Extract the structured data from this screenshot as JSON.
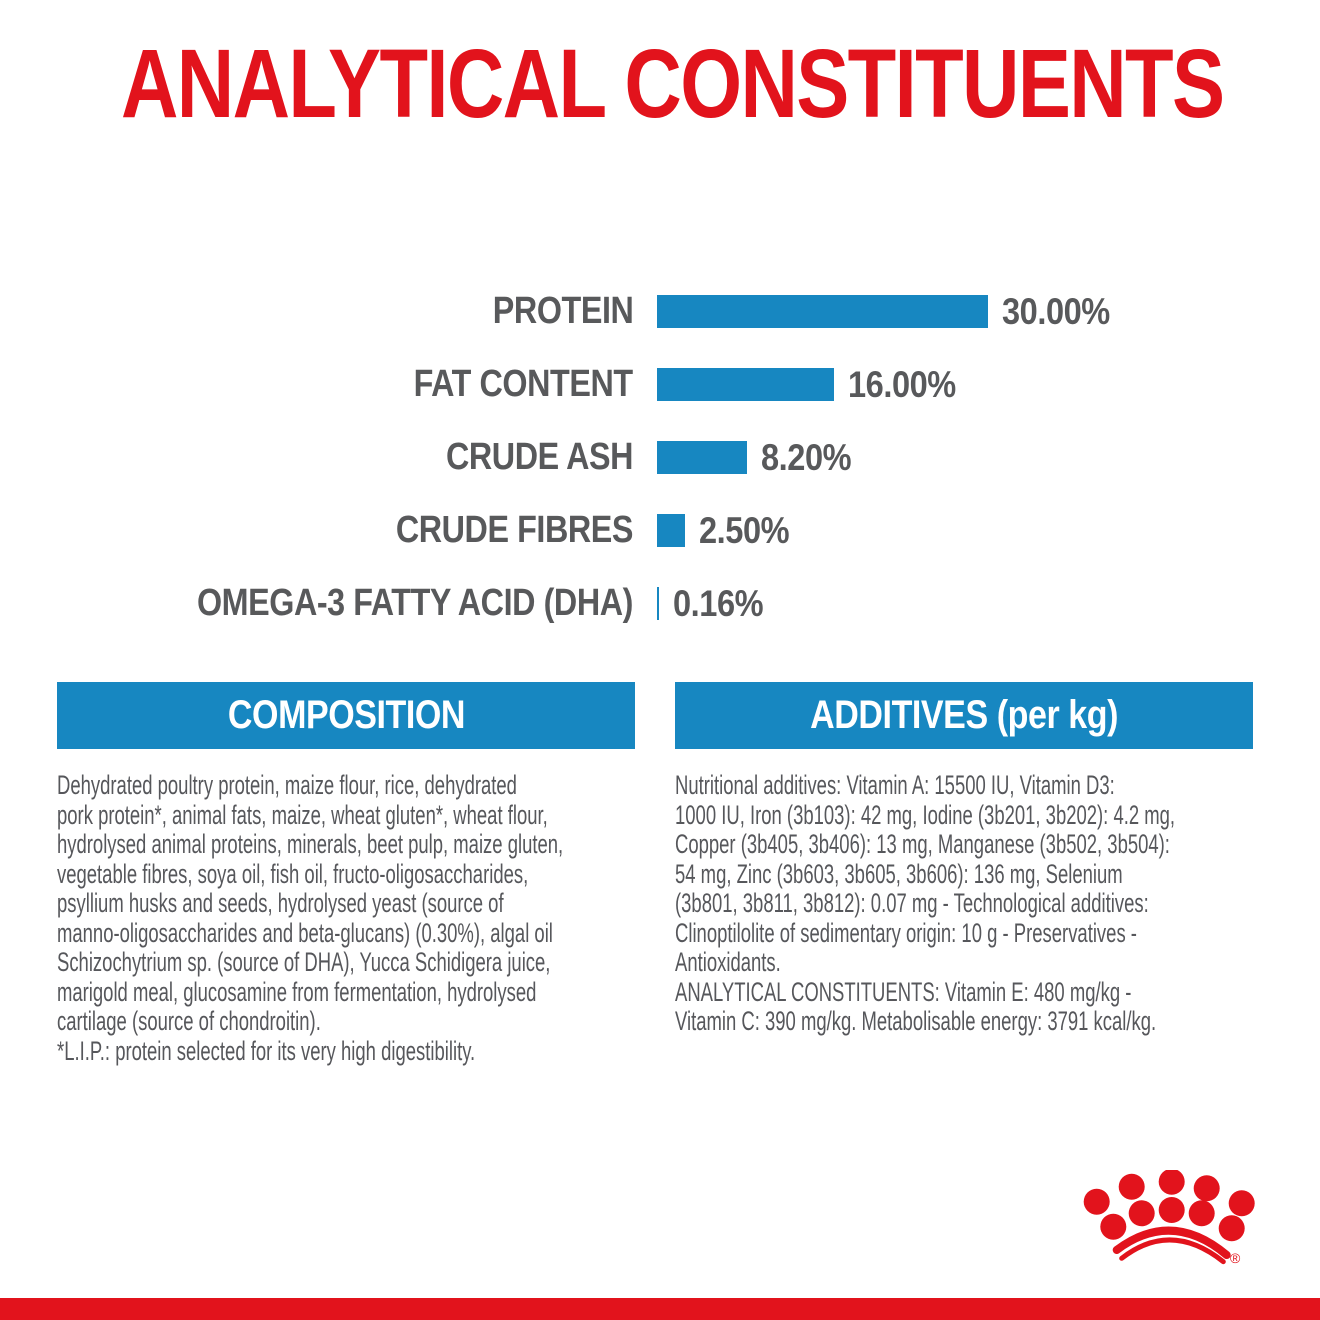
{
  "title": "ANALYTICAL CONSTITUENTS",
  "colors": {
    "brand_red": "#e2131c",
    "brand_blue": "#1787c1",
    "text_gray": "#58595b"
  },
  "chart_data": {
    "type": "bar",
    "orientation": "horizontal",
    "categories": [
      "PROTEIN",
      "FAT CONTENT",
      "CRUDE ASH",
      "CRUDE FIBRES",
      "OMEGA-3 FATTY ACID (DHA)"
    ],
    "values": [
      30.0,
      16.0,
      8.2,
      2.5,
      0.16
    ],
    "value_labels": [
      "30.00%",
      "16.00%",
      "8.20%",
      "2.50%",
      "0.16%"
    ],
    "unit": "%",
    "xlim": [
      0,
      30
    ],
    "bar_color": "#1787c1",
    "label_color": "#58595b",
    "grid": false,
    "legend": false
  },
  "sections": {
    "composition": {
      "header": "COMPOSITION",
      "body": "Dehydrated poultry protein, maize flour, rice, dehydrated\npork protein*, animal fats, maize, wheat gluten*, wheat flour,\nhydrolysed animal proteins, minerals, beet pulp, maize gluten,\nvegetable fibres, soya oil, fish oil, fructo-oligosaccharides,\npsyllium husks and seeds, hydrolysed yeast (source of\nmanno-oligosaccharides and beta-glucans) (0.30%), algal oil\nSchizochytrium sp. (source of DHA), Yucca Schidigera juice,\nmarigold meal, glucosamine from fermentation, hydrolysed\ncartilage (source of chondroitin).\n*L.I.P.: protein selected for its very high digestibility."
    },
    "additives": {
      "header": "ADDITIVES (per kg)",
      "body": "Nutritional additives: Vitamin A: 15500 IU, Vitamin D3:\n1000 IU, Iron (3b103): 42 mg, Iodine (3b201, 3b202): 4.2 mg,\nCopper (3b405, 3b406): 13 mg, Manganese (3b502, 3b504):\n54 mg, Zinc (3b603, 3b605, 3b606): 136 mg, Selenium\n(3b801, 3b811, 3b812): 0.07 mg - Technological additives:\nClinoptilolite of sedimentary origin: 10 g - Preservatives -\nAntioxidants.\nANALYTICAL CONSTITUENTS: Vitamin E: 480 mg/kg -\nVitamin C: 390 mg/kg. Metabolisable energy: 3791 kcal/kg."
    }
  },
  "logo": {
    "icon": "royal-canin-crown-logo",
    "registered_mark": "®"
  }
}
